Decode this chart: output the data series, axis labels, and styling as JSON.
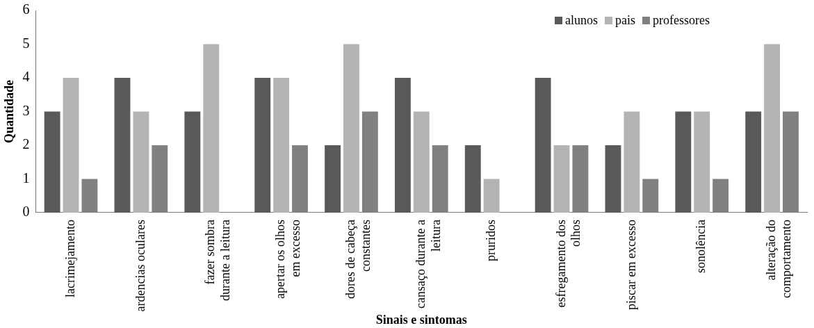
{
  "chart_data": {
    "type": "bar",
    "xlabel": "Sinais e sintomas",
    "ylabel": "Quantidade",
    "categories": [
      "lacrimejamento",
      "ardencias oculares",
      "fazer sombra durante a leitura",
      "apertar os olhos em excesso",
      "dores de cabeça constantes",
      "cansaço durante a leitura",
      "pruridos",
      "esfregamento dos olhos",
      "piscar em excesso",
      "sonolência",
      "alteração do comportamento"
    ],
    "series": [
      {
        "name": "alunos",
        "color": "#595959",
        "values": [
          3,
          4,
          3,
          4,
          2,
          4,
          2,
          4,
          2,
          3,
          3
        ]
      },
      {
        "name": "pais",
        "color": "#b3b3b3",
        "values": [
          4,
          3,
          5,
          4,
          5,
          3,
          1,
          2,
          3,
          3,
          5
        ]
      },
      {
        "name": "professores",
        "color": "#808080",
        "values": [
          1,
          2,
          0,
          2,
          3,
          2,
          0,
          2,
          1,
          1,
          3
        ]
      }
    ],
    "ylim": [
      0,
      6
    ],
    "yticks": [
      0,
      1,
      2,
      3,
      4,
      5,
      6
    ],
    "legend": "top right"
  }
}
